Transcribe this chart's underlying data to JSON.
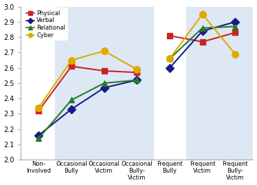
{
  "categories": [
    "Non-\nInvolved",
    "Occasional\nBully",
    "Occasional\nVictim",
    "Occasional\nBully-\nVictim",
    "Frequent\nBully",
    "Frequent\nVictim",
    "Frequent\nBully-\nVictim"
  ],
  "series": {
    "Physical": {
      "values": [
        2.32,
        2.61,
        2.58,
        2.57,
        2.81,
        2.77,
        2.83
      ],
      "color": "#cc2222",
      "marker": "s",
      "markersize": 6
    },
    "Verbal": {
      "values": [
        2.16,
        2.33,
        2.47,
        2.52,
        2.6,
        2.84,
        2.9
      ],
      "color": "#1a1a8a",
      "marker": "D",
      "markersize": 6
    },
    "Relational": {
      "values": [
        2.14,
        2.39,
        2.5,
        2.52,
        2.66,
        2.86,
        2.87
      ],
      "color": "#2a7a2a",
      "marker": "^",
      "markersize": 6
    },
    "Cyber": {
      "values": [
        2.34,
        2.65,
        2.71,
        2.59,
        2.66,
        2.95,
        2.69
      ],
      "color": "#ddaa00",
      "marker": "o",
      "markersize": 7
    }
  },
  "ylim": [
    2.0,
    3.0
  ],
  "yticks": [
    2.0,
    2.1,
    2.2,
    2.3,
    2.4,
    2.5,
    2.6,
    2.7,
    2.8,
    2.9,
    3.0
  ],
  "bg_color_light": "#dde8f4",
  "bg_color_white": "white",
  "series_order": [
    "Physical",
    "Verbal",
    "Relational",
    "Cyber"
  ],
  "group1_start": 1,
  "group1_end": 3,
  "group2_start": 4,
  "group2_end": 6,
  "xlim": [
    -0.55,
    6.55
  ]
}
